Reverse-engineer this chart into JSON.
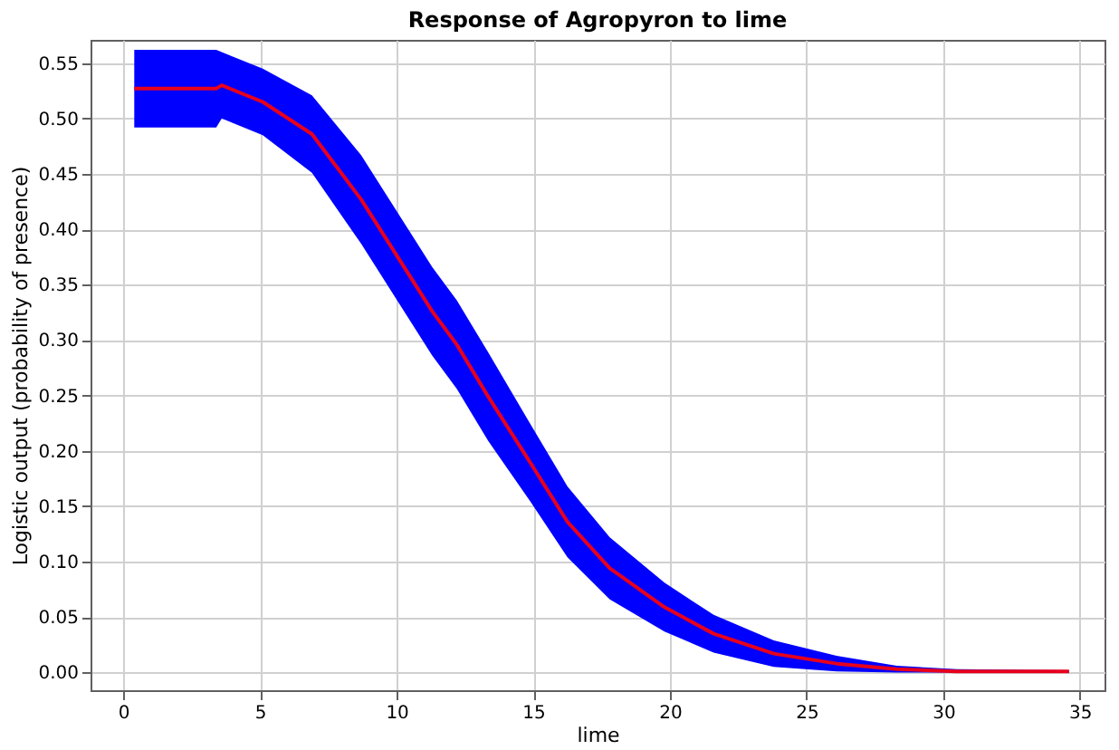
{
  "chart_data": {
    "type": "line",
    "title": "Response of Agropyron to lime",
    "xlabel": "lime",
    "ylabel": "Logistic output (probability of presence)",
    "xlim": [
      -1.2,
      35.9
    ],
    "ylim": [
      -0.016,
      0.571
    ],
    "xticks": [
      0,
      5,
      10,
      15,
      20,
      25,
      30,
      35
    ],
    "yticks": [
      {
        "value": 0,
        "label": "0.00"
      },
      {
        "value": 0.05,
        "label": "0.05"
      },
      {
        "value": 0.1,
        "label": "0.10"
      },
      {
        "value": 0.15,
        "label": "0.15"
      },
      {
        "value": 0.2,
        "label": "0.20"
      },
      {
        "value": 0.25,
        "label": "0.25"
      },
      {
        "value": 0.3,
        "label": "0.30"
      },
      {
        "value": 0.35,
        "label": "0.35"
      },
      {
        "value": 0.4,
        "label": "0.40"
      },
      {
        "value": 0.45,
        "label": "0.45"
      },
      {
        "value": 0.5,
        "label": "0.50"
      },
      {
        "value": 0.55,
        "label": "0.55"
      }
    ],
    "grid": true,
    "marker": "none",
    "line_style": "solid",
    "series": [
      {
        "color": "#e8001c",
        "x": [
          0.4,
          3.4,
          3.6,
          5.1,
          6.9,
          8.7,
          10.4,
          11.3,
          12.2,
          13.35,
          14.9,
          16.25,
          17.8,
          19.8,
          21.6,
          23.8,
          26.1,
          28.3,
          30.5,
          34.6
        ],
        "values": [
          0.527,
          0.527,
          0.53,
          0.515,
          0.486,
          0.427,
          0.361,
          0.326,
          0.296,
          0.249,
          0.189,
          0.136,
          0.094,
          0.059,
          0.035,
          0.017,
          0.008,
          0.003,
          0.001,
          0.001
        ],
        "upper": [
          0.562,
          0.562,
          0.56,
          0.545,
          0.521,
          0.467,
          0.401,
          0.366,
          0.336,
          0.289,
          0.224,
          0.168,
          0.122,
          0.081,
          0.052,
          0.029,
          0.015,
          0.006,
          0.003,
          0.002
        ],
        "lower": [
          0.492,
          0.492,
          0.5,
          0.485,
          0.451,
          0.387,
          0.321,
          0.286,
          0.256,
          0.209,
          0.154,
          0.104,
          0.066,
          0.037,
          0.018,
          0.005,
          0.001,
          0.0,
          0.0,
          0.0
        ]
      }
    ]
  }
}
